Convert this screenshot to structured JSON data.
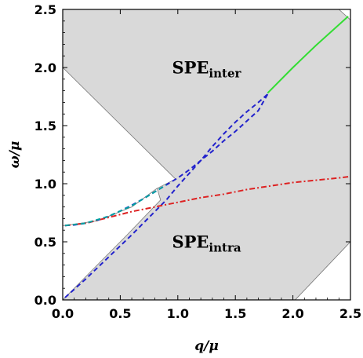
{
  "chart_data": {
    "type": "line",
    "xlabel": "q/μ",
    "ylabel": "ω/μ",
    "xlim": [
      0,
      2.5
    ],
    "ylim": [
      0,
      2.5
    ],
    "x_ticks": [
      "0.0",
      "0.5",
      "1.0",
      "1.5",
      "2.0",
      "2.5"
    ],
    "y_ticks": [
      "0.0",
      "0.5",
      "1.0",
      "1.5",
      "2.0",
      "2.5"
    ],
    "grid": false,
    "regions": [
      {
        "label_main": "SPE",
        "label_sub": "inter",
        "label_at": [
          1.2,
          1.95
        ],
        "fill": "#d9d9d9",
        "polygon": [
          [
            0,
            2.0
          ],
          [
            0,
            2.5
          ],
          [
            2.4,
            2.5
          ],
          [
            2.5,
            2.41
          ],
          [
            2.5,
            0.5
          ],
          [
            2.02,
            0
          ],
          [
            0,
            0
          ]
        ]
      }
    ],
    "labels": [
      {
        "main": "SPE",
        "sub": "inter",
        "at": [
          0.95,
          1.95
        ]
      },
      {
        "main": "SPE",
        "sub": "intra",
        "at": [
          0.95,
          0.45
        ]
      }
    ],
    "white_regions": [
      {
        "polygon": [
          [
            0,
            2.0
          ],
          [
            0,
            0.64
          ],
          [
            0.02,
            0.64
          ],
          [
            0.3,
            0.68
          ],
          [
            0.6,
            0.8
          ],
          [
            0.82,
            0.96
          ],
          [
            0.98,
            1.04
          ]
        ]
      },
      {
        "polygon": [
          [
            0,
            0
          ],
          [
            0,
            0.64
          ],
          [
            0.02,
            0.64
          ],
          [
            0.3,
            0.68
          ],
          [
            0.6,
            0.8
          ],
          [
            0.82,
            0.96
          ],
          [
            0.85,
            0.86
          ],
          [
            0.55,
            0.55
          ],
          [
            0.02,
            0.02
          ]
        ]
      },
      {
        "polygon": [
          [
            2.02,
            0
          ],
          [
            2.5,
            0
          ],
          [
            2.5,
            0.5
          ]
        ]
      }
    ],
    "series": [
      {
        "style": "solid",
        "color": "#33dd33",
        "x": [
          1.78,
          2.0,
          2.2,
          2.48
        ],
        "y": [
          1.78,
          2.0,
          2.19,
          2.44
        ]
      },
      {
        "style": "dashed",
        "color": "#2222cc",
        "x": [
          0.02,
          0.1,
          0.2,
          0.3,
          0.4,
          0.5,
          0.6,
          0.7,
          0.8,
          0.9,
          1.0,
          1.1,
          1.2,
          1.3,
          1.4,
          1.5,
          1.6,
          1.7,
          1.78
        ],
        "y": [
          0.64,
          0.645,
          0.66,
          0.685,
          0.72,
          0.765,
          0.815,
          0.87,
          0.93,
          0.99,
          1.05,
          1.12,
          1.2,
          1.28,
          1.37,
          1.45,
          1.54,
          1.63,
          1.77
        ]
      },
      {
        "style": "dashed",
        "color": "#2222cc",
        "x": [
          0.02,
          0.2,
          0.4,
          0.6,
          0.8,
          0.9,
          1.0,
          1.1,
          1.2,
          1.3,
          1.4,
          1.5,
          1.6,
          1.7,
          1.78
        ],
        "y": [
          0.02,
          0.18,
          0.37,
          0.56,
          0.76,
          0.86,
          0.98,
          1.09,
          1.2,
          1.32,
          1.43,
          1.53,
          1.62,
          1.7,
          1.77
        ]
      },
      {
        "style": "dashdot",
        "color": "#dd2222",
        "x": [
          0.02,
          0.2,
          0.4,
          0.6,
          0.8,
          1.0,
          1.2,
          1.4,
          1.6,
          1.8,
          2.0,
          2.2,
          2.4,
          2.48
        ],
        "y": [
          0.64,
          0.66,
          0.71,
          0.76,
          0.8,
          0.84,
          0.88,
          0.91,
          0.95,
          0.98,
          1.01,
          1.03,
          1.05,
          1.06
        ]
      },
      {
        "style": "dashed",
        "color": "#00a0a0",
        "x": [
          0.02,
          0.2,
          0.4,
          0.6,
          0.8,
          0.9
        ],
        "y": [
          0.64,
          0.66,
          0.72,
          0.81,
          0.93,
          0.99
        ]
      }
    ]
  }
}
